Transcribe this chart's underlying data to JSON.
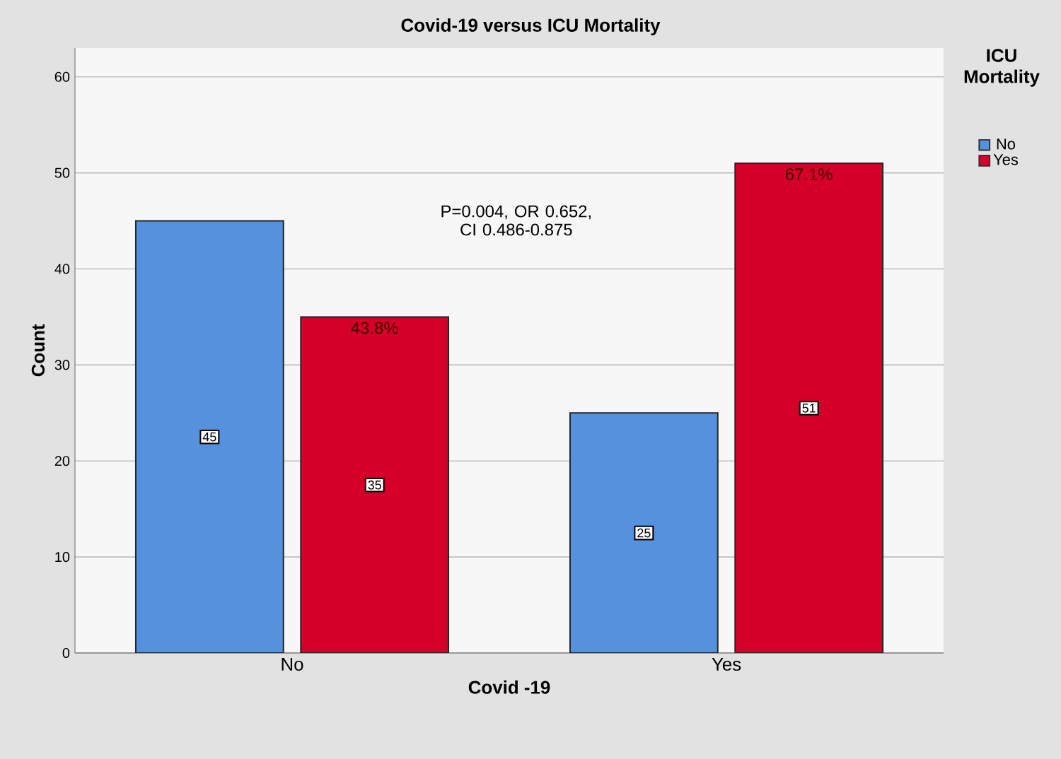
{
  "chart_data": {
    "type": "bar",
    "title": "Covid-19 versus ICU Mortality",
    "xlabel": "Covid -19",
    "ylabel": "Count",
    "legend_title": "ICU Mortality",
    "categories": [
      "No",
      "Yes"
    ],
    "series": [
      {
        "name": "No",
        "color": "#5591dc",
        "values": [
          45,
          25
        ]
      },
      {
        "name": "Yes",
        "color": "#d5002a",
        "values": [
          35,
          51
        ]
      }
    ],
    "ylim": [
      0,
      63
    ],
    "yticks": [
      0,
      10,
      20,
      30,
      40,
      50,
      60
    ],
    "grid": "y",
    "legend": "right",
    "data_labels": true,
    "annotations": [
      "P=0.004, OR 0.652, CI 0.486-0.875",
      "43.8%",
      "67.1%"
    ]
  }
}
